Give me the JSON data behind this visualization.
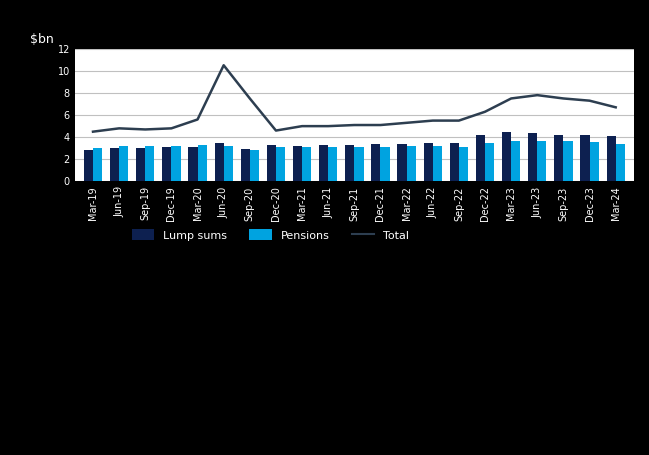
{
  "ylabel": "$bn",
  "bar_width": 0.35,
  "dark_bar_color": "#0d2050",
  "light_bar_color": "#00a3e0",
  "line_color": "#2d3e50",
  "background_color": "#ffffff",
  "plot_bg_color": "#ffffff",
  "grid_color": "#c0c0c0",
  "quarters": [
    "Mar-19",
    "Jun-19",
    "Sep-19",
    "Dec-19",
    "Mar-20",
    "Jun-20",
    "Sep-20",
    "Dec-20",
    "Mar-21",
    "Jun-21",
    "Sep-21",
    "Dec-21",
    "Mar-22",
    "Jun-22",
    "Sep-22",
    "Dec-22",
    "Mar-23",
    "Jun-23",
    "Sep-23",
    "Dec-23",
    "Mar-24"
  ],
  "dark_bars": [
    2.8,
    3.0,
    3.0,
    3.1,
    3.1,
    3.5,
    2.9,
    3.3,
    3.2,
    3.3,
    3.3,
    3.4,
    3.4,
    3.5,
    3.5,
    4.2,
    4.5,
    4.4,
    4.2,
    4.2,
    4.1
  ],
  "light_bars": [
    3.0,
    3.2,
    3.2,
    3.2,
    3.3,
    3.2,
    2.8,
    3.1,
    3.1,
    3.1,
    3.1,
    3.1,
    3.2,
    3.2,
    3.1,
    3.5,
    3.7,
    3.7,
    3.7,
    3.6,
    3.4
  ],
  "line_values": [
    4.5,
    4.8,
    4.7,
    4.8,
    5.6,
    10.5,
    7.5,
    4.6,
    5.0,
    5.0,
    5.1,
    5.1,
    5.3,
    5.5,
    5.5,
    6.3,
    7.5,
    7.8,
    7.5,
    7.3,
    6.7
  ],
  "ylim": [
    0,
    12
  ],
  "yticks": [
    0,
    2,
    4,
    6,
    8,
    10,
    12
  ],
  "legend_labels": [
    "Lump sums",
    "Pensions",
    "Total"
  ],
  "figsize": [
    6.49,
    4.55
  ],
  "dpi": 100
}
